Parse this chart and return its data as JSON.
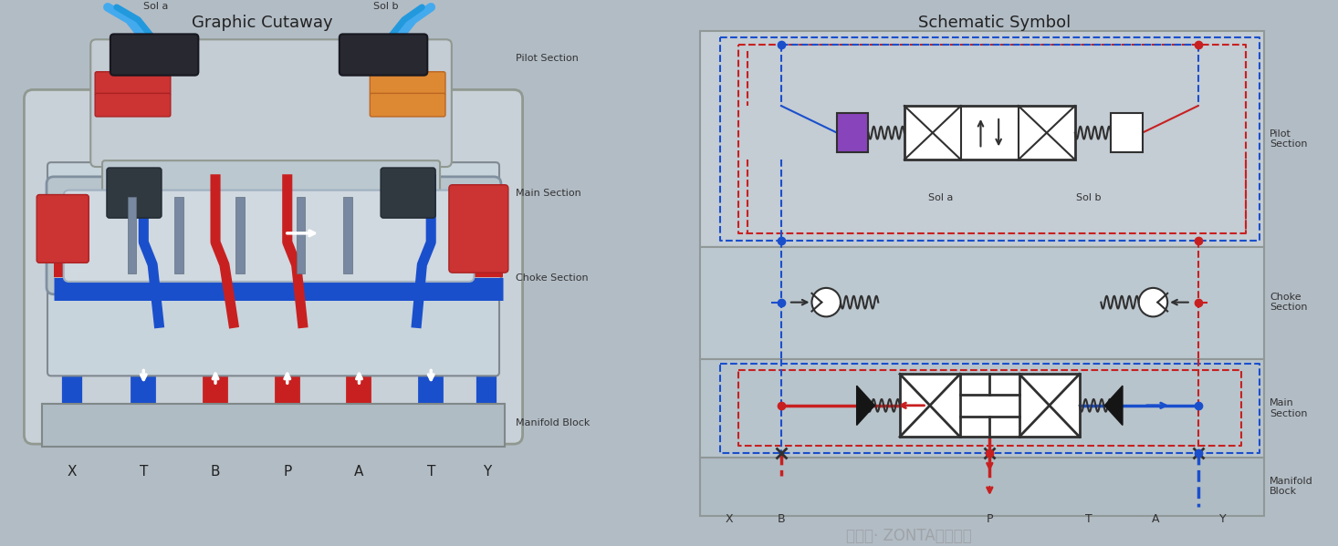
{
  "bg_color": "#b2bcc5",
  "title_left": "Graphic Cutaway",
  "title_right": "Schematic Symbol",
  "port_labels_left": [
    "X",
    "T",
    "B",
    "P",
    "A",
    "T",
    "Y"
  ],
  "section_labels_left": [
    "Pilot Section",
    "Choke Section",
    "Main Section",
    "Manifold Block"
  ],
  "section_labels_right": [
    "Pilot\nSection",
    "Choke\nSection",
    "Main\nSection",
    "Manifold\nBlock"
  ],
  "sol_labels": [
    "Sol a",
    "Sol b"
  ],
  "red": "#c82020",
  "blue": "#1a4fcc",
  "light_blue_cable": "#44aaee",
  "dark_blue_cable": "#2299dd",
  "gray_body": "#c8d0d8",
  "gray_body2": "#bcc8d0",
  "silver_spool": "#d0d8e0",
  "groove_color": "#7888a0",
  "sol_connector": "#282830",
  "red_coil": "#cc3333",
  "orange_coil": "#dd8833",
  "spring_red": "#cc3333",
  "white": "#ffffff",
  "purple": "#8844bb",
  "dark": "#202020",
  "section_pilot": "#c4ccd4",
  "section_choke": "#bcc8d0",
  "section_main": "#b8c4cc",
  "section_manif": "#b0bcc4",
  "watermark": "公众号· ZONTA中泰机电"
}
